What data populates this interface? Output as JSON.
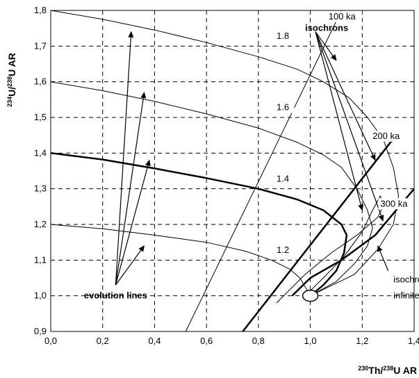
{
  "chart_data": {
    "type": "line",
    "title": "",
    "xlabel": {
      "sup1": "230",
      "main1": "Th/",
      "sup2": "238",
      "main2": "U AR"
    },
    "ylabel": {
      "sup1": "234",
      "main1": "U/",
      "sup2": "238",
      "main2": "U AR"
    },
    "xlim": [
      0.0,
      1.4
    ],
    "ylim": [
      0.9,
      1.8
    ],
    "grid": true,
    "x_ticks": [
      "0,0",
      "0,2",
      "0,4",
      "0,6",
      "0,8",
      "1,0",
      "1,2",
      "1,4"
    ],
    "y_ticks": [
      "0,9",
      "1,0",
      "1,1",
      "1,2",
      "1,3",
      "1,4",
      "1,5",
      "1,6",
      "1,7",
      "1,8"
    ],
    "evolution_lines": [
      {
        "label": "1.2",
        "label_at": [
          0.87,
          1.12
        ],
        "points": [
          [
            0.0,
            1.2
          ],
          [
            0.2,
            1.188
          ],
          [
            0.4,
            1.17
          ],
          [
            0.6,
            1.15
          ],
          [
            0.75,
            1.125
          ],
          [
            0.85,
            1.1
          ],
          [
            0.92,
            1.075
          ],
          [
            0.96,
            1.05
          ],
          [
            0.98,
            1.025
          ],
          [
            1.0,
            1.0
          ]
        ],
        "emphasis": false
      },
      {
        "label": "1.4",
        "label_at": [
          0.87,
          1.32
        ],
        "points": [
          [
            0.0,
            1.4
          ],
          [
            0.2,
            1.382
          ],
          [
            0.4,
            1.357
          ],
          [
            0.6,
            1.33
          ],
          [
            0.8,
            1.3
          ],
          [
            0.95,
            1.27
          ],
          [
            1.05,
            1.24
          ],
          [
            1.12,
            1.2
          ],
          [
            1.14,
            1.17
          ],
          [
            1.13,
            1.12
          ],
          [
            1.1,
            1.07
          ],
          [
            1.05,
            1.03
          ],
          [
            1.0,
            1.0
          ]
        ],
        "emphasis": true
      },
      {
        "label": "1.6",
        "label_at": [
          0.87,
          1.52
        ],
        "points": [
          [
            0.0,
            1.6
          ],
          [
            0.2,
            1.575
          ],
          [
            0.4,
            1.545
          ],
          [
            0.6,
            1.51
          ],
          [
            0.8,
            1.47
          ],
          [
            0.95,
            1.43
          ],
          [
            1.05,
            1.395
          ],
          [
            1.12,
            1.36
          ],
          [
            1.18,
            1.3
          ],
          [
            1.22,
            1.24
          ],
          [
            1.24,
            1.19
          ],
          [
            1.22,
            1.14
          ],
          [
            1.17,
            1.09
          ],
          [
            1.1,
            1.04
          ],
          [
            1.0,
            1.0
          ]
        ],
        "emphasis": false
      },
      {
        "label": "1.8",
        "label_at": [
          0.87,
          1.72
        ],
        "points": [
          [
            0.0,
            1.8
          ],
          [
            0.2,
            1.775
          ],
          [
            0.4,
            1.745
          ],
          [
            0.6,
            1.71
          ],
          [
            0.8,
            1.67
          ],
          [
            0.95,
            1.635
          ],
          [
            1.05,
            1.6
          ],
          [
            1.15,
            1.555
          ],
          [
            1.22,
            1.5
          ],
          [
            1.28,
            1.44
          ],
          [
            1.32,
            1.36
          ],
          [
            1.34,
            1.28
          ],
          [
            1.32,
            1.2
          ],
          [
            1.26,
            1.13
          ],
          [
            1.17,
            1.06
          ],
          [
            1.0,
            1.0
          ]
        ],
        "emphasis": false
      }
    ],
    "isochrons": [
      {
        "label": "100 ka",
        "label_at": [
          1.07,
          1.775
        ],
        "points": [
          [
            0.52,
            0.9
          ],
          [
            1.12,
            1.8
          ]
        ],
        "emphasis": false
      },
      {
        "label": "200 ka",
        "label_at": [
          1.24,
          1.44
        ],
        "points": [
          [
            0.74,
            0.9
          ],
          [
            1.33,
            1.45
          ]
        ],
        "emphasis": true
      },
      {
        "label": "300 ka",
        "label_at": [
          1.27,
          1.25
        ],
        "points": [
          [
            0.87,
            0.98
          ],
          [
            0.98,
            1.06
          ],
          [
            1.08,
            1.12
          ],
          [
            1.18,
            1.17
          ],
          [
            1.26,
            1.22
          ],
          [
            1.28,
            1.25
          ],
          [
            1.27,
            1.28
          ],
          [
            1.24,
            1.24
          ],
          [
            1.2,
            1.18
          ],
          [
            1.13,
            1.11
          ],
          [
            1.05,
            1.05
          ],
          [
            0.98,
            1.0
          ]
        ],
        "emphasis": false
      },
      {
        "label": "isochron of infinite age",
        "points": [
          [
            0.93,
            1.0
          ],
          [
            1.0,
            1.05
          ],
          [
            1.12,
            1.1
          ],
          [
            1.25,
            1.17
          ],
          [
            1.4,
            1.3
          ]
        ],
        "emphasis": true
      }
    ],
    "origin_marker": {
      "x": 1.0,
      "y": 1.0
    },
    "annotations": [
      {
        "text": "evolution lines",
        "bold": true,
        "at": [
          0.25,
          1.0
        ]
      },
      {
        "text": "isochrons",
        "bold": true,
        "at": [
          0.98,
          1.75
        ]
      },
      {
        "text": "isochron of",
        "bold": false,
        "at": [
          1.32,
          1.045
        ]
      },
      {
        "text": "infinite age",
        "bold": false,
        "at": [
          1.32,
          1.0
        ]
      }
    ],
    "arrows": [
      {
        "from": [
          0.25,
          1.03
        ],
        "to": [
          0.31,
          1.74
        ]
      },
      {
        "from": [
          0.25,
          1.03
        ],
        "to": [
          0.36,
          1.57
        ]
      },
      {
        "from": [
          0.25,
          1.03
        ],
        "to": [
          0.38,
          1.38
        ]
      },
      {
        "from": [
          0.25,
          1.03
        ],
        "to": [
          0.36,
          1.14
        ]
      },
      {
        "from": [
          1.02,
          1.74
        ],
        "to": [
          1.1,
          1.66
        ]
      },
      {
        "from": [
          1.02,
          1.74
        ],
        "to": [
          1.25,
          1.38
        ]
      },
      {
        "from": [
          1.02,
          1.74
        ],
        "to": [
          1.28,
          1.21
        ]
      },
      {
        "from": [
          1.02,
          1.74
        ],
        "to": [
          1.2,
          1.24
        ]
      },
      {
        "from": [
          1.3,
          1.07
        ],
        "to": [
          1.26,
          1.14
        ]
      }
    ]
  }
}
